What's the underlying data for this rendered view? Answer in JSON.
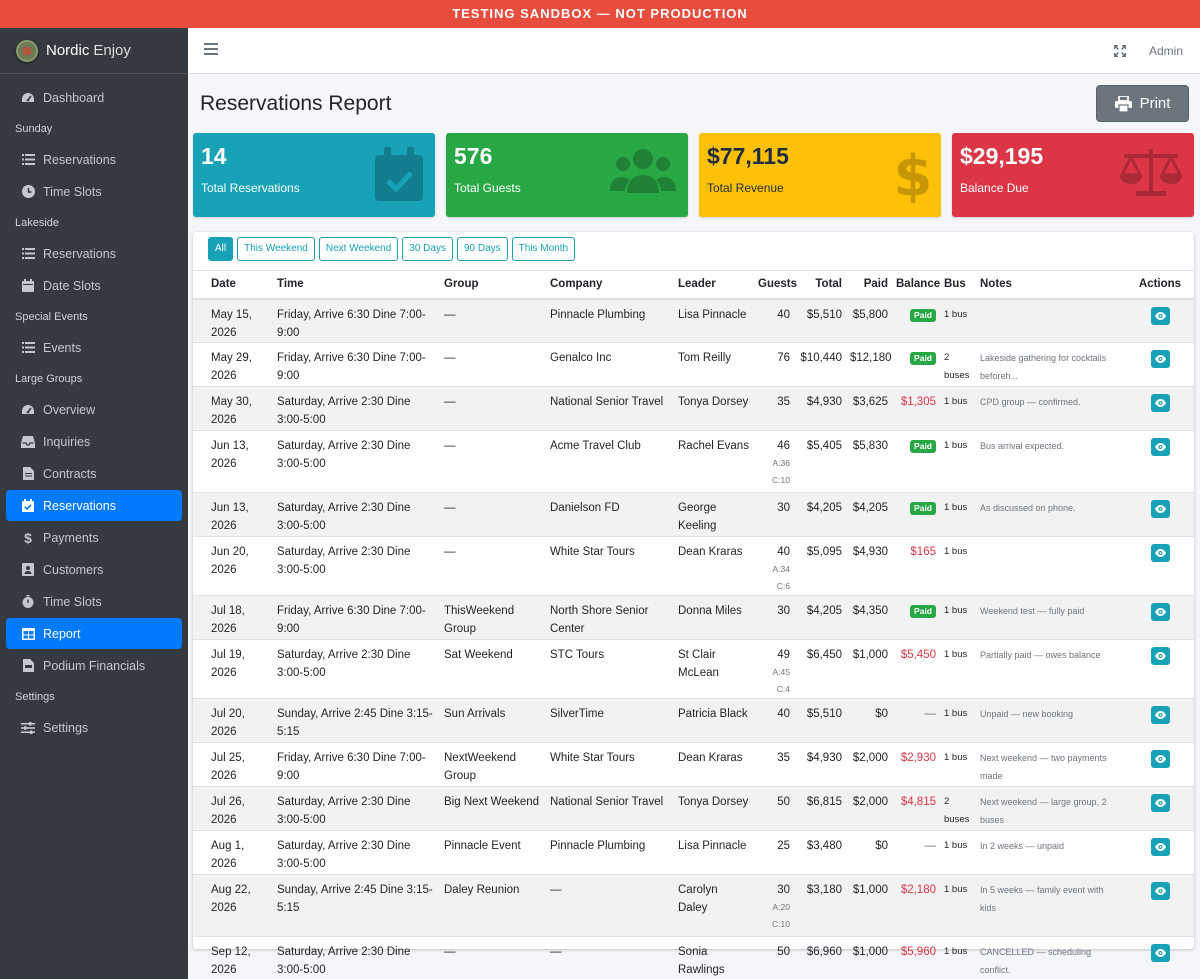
{
  "banner": "TESTING SANDBOX — NOT PRODUCTION",
  "brand": {
    "name": "Nordic",
    "suffix": "Enjoy"
  },
  "topbar": {
    "user": "Admin"
  },
  "sidebar": {
    "dashboard": "Dashboard",
    "sunday_header": "Sunday",
    "sunday_reservations": "Reservations",
    "sunday_time_slots": "Time Slots",
    "lakeside_header": "Lakeside",
    "lakeside_reservations": "Reservations",
    "lakeside_date_slots": "Date Slots",
    "special_header": "Special Events",
    "special_events": "Events",
    "large_header": "Large Groups",
    "overview": "Overview",
    "inquiries": "Inquiries",
    "contracts": "Contracts",
    "reservations": "Reservations",
    "payments": "Payments",
    "customers": "Customers",
    "time_slots": "Time Slots",
    "report": "Report",
    "podium": "Podium Financials",
    "settings_header": "Settings",
    "settings": "Settings"
  },
  "page": {
    "title": "Reservations Report",
    "print": "Print"
  },
  "stats": [
    {
      "value": "14",
      "label": "Total Reservations",
      "icon": "calendar-check-icon"
    },
    {
      "value": "576",
      "label": "Total Guests",
      "icon": "users-icon"
    },
    {
      "value": "$77,115",
      "label": "Total Revenue",
      "icon": "dollar-icon"
    },
    {
      "value": "$29,195",
      "label": "Balance Due",
      "icon": "balance-scale-icon"
    }
  ],
  "filters": [
    "All",
    "This Weekend",
    "Next Weekend",
    "30 Days",
    "90 Days",
    "This Month"
  ],
  "active_filter": "All",
  "table": {
    "headers": [
      "Date",
      "Time",
      "Group",
      "Company",
      "Leader",
      "Guests",
      "Total",
      "Paid",
      "Balance",
      "Bus",
      "Notes",
      "Actions"
    ],
    "rows": [
      {
        "date": "May 15, 2026",
        "time": "Friday, Arrive 6:30 Dine 7:00-9:00",
        "group": "—",
        "company": "Pinnacle Plumbing",
        "leader": "Lisa Pinnacle",
        "guests": "40",
        "sub": "",
        "total": "$5,510",
        "paid": "$5,800",
        "balance": "Paid",
        "btype": "paid",
        "bus": "1 bus",
        "notes": ""
      },
      {
        "date": "May 29, 2026",
        "time": "Friday, Arrive 6:30 Dine 7:00-9:00",
        "group": "—",
        "company": "Genalco Inc",
        "leader": "Tom Reilly",
        "guests": "76",
        "sub": "",
        "total": "$10,440",
        "paid": "$12,180",
        "balance": "Paid",
        "btype": "paid",
        "bus": "2 buses",
        "notes": "Lakeside gathering for cocktails beforeh..."
      },
      {
        "date": "May 30, 2026",
        "time": "Saturday, Arrive 2:30 Dine 3:00-5:00",
        "group": "—",
        "company": "National Senior Travel",
        "leader": "Tonya Dorsey",
        "guests": "35",
        "sub": "",
        "total": "$4,930",
        "paid": "$3,625",
        "balance": "$1,305",
        "btype": "due",
        "bus": "1 bus",
        "notes": "CPD group — confirmed."
      },
      {
        "date": "Jun 13, 2026",
        "time": "Saturday, Arrive 2:30 Dine 3:00-5:00",
        "group": "—",
        "company": "Acme Travel Club",
        "leader": "Rachel Evans",
        "guests": "46",
        "sub": "A:36 C:10",
        "total": "$5,405",
        "paid": "$5,830",
        "balance": "Paid",
        "btype": "paid",
        "bus": "1 bus",
        "notes": "Bus arrival expected."
      },
      {
        "date": "Jun 13, 2026",
        "time": "Saturday, Arrive 2:30 Dine 3:00-5:00",
        "group": "—",
        "company": "Danielson FD",
        "leader": "George Keeling",
        "guests": "30",
        "sub": "",
        "total": "$4,205",
        "paid": "$4,205",
        "balance": "Paid",
        "btype": "paid",
        "bus": "1 bus",
        "notes": "As discussed on phone."
      },
      {
        "date": "Jun 20, 2026",
        "time": "Saturday, Arrive 2:30 Dine 3:00-5:00",
        "group": "—",
        "company": "White Star Tours",
        "leader": "Dean Kraras",
        "guests": "40",
        "sub": "A:34 C:6",
        "total": "$5,095",
        "paid": "$4,930",
        "balance": "$165",
        "btype": "due",
        "bus": "1 bus",
        "notes": ""
      },
      {
        "date": "Jul 18, 2026",
        "time": "Friday, Arrive 6:30 Dine 7:00-9:00",
        "group": "ThisWeekend Group",
        "company": "North Shore Senior Center",
        "leader": "Donna Miles",
        "guests": "30",
        "sub": "",
        "total": "$4,205",
        "paid": "$4,350",
        "balance": "Paid",
        "btype": "paid",
        "bus": "1 bus",
        "notes": "Weekend test — fully paid"
      },
      {
        "date": "Jul 19, 2026",
        "time": "Saturday, Arrive 2:30 Dine 3:00-5:00",
        "group": "Sat Weekend",
        "company": "STC Tours",
        "leader": "St Clair McLean",
        "guests": "49",
        "sub": "A:45 C:4",
        "total": "$6,450",
        "paid": "$1,000",
        "balance": "$5,450",
        "btype": "due",
        "bus": "1 bus",
        "notes": "Partially paid — owes balance"
      },
      {
        "date": "Jul 20, 2026",
        "time": "Sunday, Arrive 2:45 Dine 3:15-5:15",
        "group": "Sun Arrivals",
        "company": "SilverTime",
        "leader": "Patricia Black",
        "guests": "40",
        "sub": "",
        "total": "$5,510",
        "paid": "$0",
        "balance": "—",
        "btype": "none",
        "bus": "1 bus",
        "notes": "Unpaid — new booking"
      },
      {
        "date": "Jul 25, 2026",
        "time": "Friday, Arrive 6:30 Dine 7:00-9:00",
        "group": "NextWeekend Group",
        "company": "White Star Tours",
        "leader": "Dean Kraras",
        "guests": "35",
        "sub": "",
        "total": "$4,930",
        "paid": "$2,000",
        "balance": "$2,930",
        "btype": "due",
        "bus": "1 bus",
        "notes": "Next weekend — two payments made"
      },
      {
        "date": "Jul 26, 2026",
        "time": "Saturday, Arrive 2:30 Dine 3:00-5:00",
        "group": "Big Next Weekend",
        "company": "National Senior Travel",
        "leader": "Tonya Dorsey",
        "guests": "50",
        "sub": "",
        "total": "$6,815",
        "paid": "$2,000",
        "balance": "$4,815",
        "btype": "due",
        "bus": "2 buses",
        "notes": "Next weekend — large group, 2 buses"
      },
      {
        "date": "Aug 1, 2026",
        "time": "Saturday, Arrive 2:30 Dine 3:00-5:00",
        "group": "Pinnacle Event",
        "company": "Pinnacle Plumbing",
        "leader": "Lisa Pinnacle",
        "guests": "25",
        "sub": "",
        "total": "$3,480",
        "paid": "$0",
        "balance": "—",
        "btype": "none",
        "bus": "1 bus",
        "notes": "In 2 weeks — unpaid"
      },
      {
        "date": "Aug 22, 2026",
        "time": "Sunday, Arrive 2:45 Dine 3:15-5:15",
        "group": "Daley Reunion",
        "company": "—",
        "leader": "Carolyn Daley",
        "guests": "30",
        "sub": "A:20 C:10",
        "total": "$3,180",
        "paid": "$1,000",
        "balance": "$2,180",
        "btype": "due",
        "bus": "1 bus",
        "notes": "In 5 weeks — family event with kids"
      },
      {
        "date": "Sep 12, 2026",
        "time": "Saturday, Arrive 2:30 Dine 3:00-5:00",
        "group": "—",
        "company": "—",
        "leader": "Sonia Rawlings",
        "guests": "50",
        "sub": "",
        "total": "$6,960",
        "paid": "$1,000",
        "balance": "$5,960",
        "btype": "due",
        "bus": "1 bus",
        "notes": "CANCELLED — scheduling conflict."
      }
    ]
  }
}
